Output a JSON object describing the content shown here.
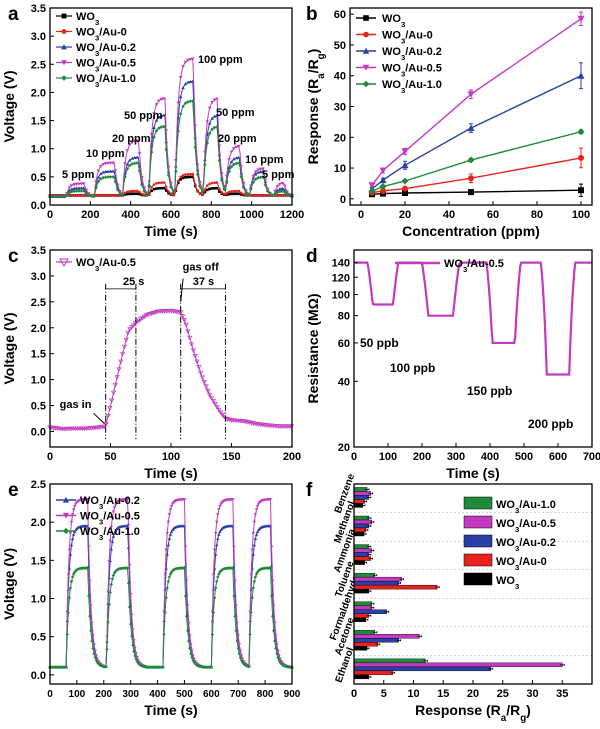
{
  "series_colors": {
    "WO3": "#000000",
    "Au0": "#e8231f",
    "Au02": "#2b3fa8",
    "Au05": "#c23ac0",
    "Au10": "#1f8a3a"
  },
  "chart_data": [
    {
      "id": "a",
      "panel_label": "a",
      "type": "line",
      "xlabel": "Time (s)",
      "ylabel": "Voltage (V)",
      "xlim": [
        0,
        1200
      ],
      "ylim": [
        0,
        3.5
      ],
      "xticks": [
        "0",
        "200",
        "400",
        "600",
        "800",
        "1000",
        "1200"
      ],
      "yticks": [
        "0.0",
        "0.5",
        "1.0",
        "1.5",
        "2.0",
        "2.5",
        "3.0",
        "3.5"
      ],
      "legend": [
        "WO3",
        "WO3/Au-0",
        "WO3/Au-0.2",
        "WO3/Au-0.5",
        "WO3/Au-1.0"
      ],
      "legend_sub": [
        "3",
        "3",
        "3",
        "3",
        "3"
      ],
      "legend_base": [
        "WO",
        "WO",
        "WO",
        "WO",
        "WO"
      ],
      "legend_tail": [
        "",
        "/Au-0",
        "/Au-0.2",
        "/Au-0.5",
        "/Au-1.0"
      ],
      "pulses": [
        {
          "start": 80,
          "end": 170,
          "ppm": 5
        },
        {
          "start": 220,
          "end": 320,
          "ppm": 10
        },
        {
          "start": 360,
          "end": 440,
          "ppm": 20
        },
        {
          "start": 490,
          "end": 570,
          "ppm": 50
        },
        {
          "start": 620,
          "end": 710,
          "ppm": 100
        },
        {
          "start": 760,
          "end": 830,
          "ppm": 50
        },
        {
          "start": 870,
          "end": 940,
          "ppm": 20
        },
        {
          "start": 990,
          "end": 1060,
          "ppm": 10
        },
        {
          "start": 1110,
          "end": 1160,
          "ppm": 5
        }
      ],
      "peak_levels": {
        "WO3": [
          0.12,
          0.15,
          0.2,
          0.3,
          0.5,
          0.3,
          0.2,
          0.15,
          0.12
        ],
        "Au0": [
          0.12,
          0.17,
          0.25,
          0.4,
          0.55,
          0.4,
          0.25,
          0.17,
          0.12
        ],
        "Au02": [
          0.3,
          0.6,
          0.85,
          1.6,
          2.2,
          1.6,
          0.85,
          0.6,
          0.3
        ],
        "Au05": [
          0.38,
          0.75,
          1.15,
          1.9,
          2.6,
          1.9,
          1.05,
          0.65,
          0.4
        ],
        "Au10": [
          0.25,
          0.5,
          0.75,
          1.4,
          1.85,
          1.4,
          0.75,
          0.5,
          0.25
        ]
      },
      "baseline": 0.15,
      "annotations": [
        "5 ppm",
        "10 ppm",
        "20 ppm",
        "50 ppm",
        "100 ppm",
        "50 ppm",
        "20 ppm",
        "10 ppm",
        "5 ppm"
      ]
    },
    {
      "id": "b",
      "panel_label": "b",
      "type": "line",
      "xlabel": "Concentration (ppm)",
      "ylabel_base": "Response (R",
      "ylabel_sub1": "a",
      "ylabel_mid": "/R",
      "ylabel_sub2": "g",
      "ylabel_end": ")",
      "xlim": [
        0,
        100
      ],
      "ylim": [
        0,
        60
      ],
      "xticks": [
        "0",
        "20",
        "40",
        "60",
        "80",
        "100"
      ],
      "yticks": [
        "0",
        "10",
        "20",
        "30",
        "40",
        "50",
        "60"
      ],
      "x": [
        5,
        10,
        20,
        50,
        100
      ],
      "series": [
        {
          "name": "WO3",
          "key": "WO3",
          "values": [
            1.5,
            1.7,
            1.9,
            2.2,
            2.8
          ],
          "err": [
            0.3,
            0.3,
            0.3,
            0.4,
            2.0
          ]
        },
        {
          "name": "WO3/Au-0",
          "key": "Au0",
          "values": [
            2.0,
            2.6,
            3.3,
            6.7,
            13.3
          ],
          "err": [
            0.3,
            0.4,
            0.6,
            1.4,
            3.2
          ]
        },
        {
          "name": "WO3/Au-0.2",
          "key": "Au02",
          "values": [
            3.2,
            6.1,
            10.9,
            23.0,
            40.0
          ],
          "err": [
            0.4,
            0.6,
            1.3,
            1.4,
            4.2
          ]
        },
        {
          "name": "WO3/Au-0.5",
          "key": "Au05",
          "values": [
            4.4,
            9.2,
            15.4,
            34.0,
            58.5
          ],
          "err": [
            0.4,
            0.8,
            1.0,
            1.4,
            2.2
          ]
        },
        {
          "name": "WO3/Au-1.0",
          "key": "Au10",
          "values": [
            2.5,
            4.0,
            5.8,
            12.6,
            21.8
          ],
          "err": [
            0.3,
            0.4,
            0.4,
            0.5,
            0.6
          ]
        }
      ],
      "legend_tail": [
        "",
        "/Au-0",
        "/Au-0.2",
        "/Au-0.5",
        "/Au-1.0"
      ]
    },
    {
      "id": "c",
      "panel_label": "c",
      "type": "line",
      "xlabel": "Time (s)",
      "ylabel": "Voltage (V)",
      "xlim": [
        0,
        200
      ],
      "ylim": [
        0,
        3.5
      ],
      "xticks": [
        "0",
        "50",
        "100",
        "150",
        "200"
      ],
      "yticks": [
        "0.0",
        "0.5",
        "1.0",
        "1.5",
        "2.0",
        "2.5",
        "3.0",
        "3.5"
      ],
      "legend_base": "WO",
      "legend_sub": "3",
      "legend_tail": "/Au-0.5",
      "annotations": {
        "gas_in": "gas in",
        "gas_off": "gas off",
        "t_res": "25 s",
        "t_rec": "37 s"
      },
      "markers_x": [
        46,
        71,
        108,
        145
      ],
      "curve_x": [
        0,
        10,
        20,
        30,
        40,
        46,
        50,
        55,
        60,
        65,
        71,
        80,
        90,
        100,
        108,
        112,
        118,
        125,
        132,
        140,
        145,
        150,
        160,
        170,
        180,
        190,
        200
      ],
      "curve_y": [
        0.08,
        0.05,
        0.06,
        0.06,
        0.08,
        0.1,
        0.5,
        1.0,
        1.5,
        1.95,
        2.1,
        2.25,
        2.32,
        2.33,
        2.3,
        2.1,
        1.6,
        1.1,
        0.7,
        0.4,
        0.25,
        0.22,
        0.2,
        0.15,
        0.12,
        0.1,
        0.1
      ]
    },
    {
      "id": "d",
      "panel_label": "d",
      "type": "line",
      "xlabel": "Time (s)",
      "ylabel": "Resistance (MΩ)",
      "xlim": [
        0,
        700
      ],
      "ylim_log": [
        20,
        160
      ],
      "xticks": [
        "0",
        "100",
        "200",
        "300",
        "400",
        "500",
        "600",
        "700"
      ],
      "yticks": [
        20,
        40,
        60,
        80,
        100,
        120,
        140
      ],
      "legend_base": "WO",
      "legend_sub": "3",
      "legend_tail": "/Au-0.5",
      "baseline": 140,
      "dips": [
        {
          "start": 40,
          "end": 130,
          "min": 90,
          "label": "50 ppb"
        },
        {
          "start": 200,
          "end": 310,
          "min": 80,
          "label": "100 ppb"
        },
        {
          "start": 390,
          "end": 490,
          "min": 60,
          "label": "150 ppb"
        },
        {
          "start": 550,
          "end": 650,
          "min": 43,
          "label": "200 ppb"
        }
      ]
    },
    {
      "id": "e",
      "panel_label": "e",
      "type": "line",
      "xlabel": "Time (s)",
      "ylabel": "Voltage (V)",
      "xlim": [
        0,
        900
      ],
      "ylim": [
        0,
        2.5
      ],
      "xticks": [
        "0",
        "100",
        "200",
        "300",
        "400",
        "500",
        "600",
        "700",
        "800",
        "900"
      ],
      "yticks": [
        "0.0",
        "0.5",
        "1.0",
        "1.5",
        "2.0",
        "2.5"
      ],
      "legend_tail": [
        "/Au-0.2",
        "/Au-0.5",
        "/Au-1.0"
      ],
      "pulse_starts": [
        60,
        210,
        420,
        600,
        740
      ],
      "pulse_width": 80,
      "series": [
        {
          "name": "WO3/Au-0.2",
          "key": "Au02",
          "peak": 1.95
        },
        {
          "name": "WO3/Au-0.5",
          "key": "Au05",
          "peak": 2.3
        },
        {
          "name": "WO3/Au-1.0",
          "key": "Au10",
          "peak": 1.4
        }
      ],
      "baseline": 0.1
    },
    {
      "id": "f",
      "panel_label": "f",
      "type": "bar",
      "xlabel_base": "Response (R",
      "xlabel_sub1": "a",
      "xlabel_mid": "/R",
      "xlabel_sub2": "g",
      "xlabel_end": ")",
      "xlim": [
        0,
        40
      ],
      "xticks": [
        "0",
        "5",
        "10",
        "15",
        "20",
        "25",
        "30",
        "35"
      ],
      "categories": [
        "Ethanol",
        "Acetone",
        "Formaldehyde",
        "Toluene",
        "Ammonia",
        "Methanol",
        "Benzene"
      ],
      "series": [
        {
          "name": "WO3",
          "key": "WO3",
          "values": [
            2.5,
            2.2,
            2.0,
            2.5,
            1.8,
            1.7,
            1.5
          ]
        },
        {
          "name": "WO3/Au-0",
          "key": "Au0",
          "values": [
            6.5,
            4.0,
            2.5,
            14.0,
            2.8,
            2.0,
            1.8
          ]
        },
        {
          "name": "WO3/Au-0.2",
          "key": "Au02",
          "values": [
            23.0,
            7.5,
            5.5,
            7.5,
            2.5,
            2.5,
            2.5
          ]
        },
        {
          "name": "WO3/Au-0.5",
          "key": "Au05",
          "values": [
            35.0,
            11.0,
            3.0,
            8.0,
            3.0,
            3.0,
            2.8
          ]
        },
        {
          "name": "WO3/Au-1.0",
          "key": "Au10",
          "values": [
            12.0,
            3.5,
            3.0,
            3.5,
            2.5,
            2.5,
            2.2
          ]
        }
      ],
      "legend_order": [
        "Au10",
        "Au05",
        "Au02",
        "Au0",
        "WO3"
      ],
      "legend_tail": {
        "Au10": "/Au-1.0",
        "Au05": "/Au-0.5",
        "Au02": "/Au-0.2",
        "Au0": "/Au-0",
        "WO3": ""
      }
    }
  ]
}
